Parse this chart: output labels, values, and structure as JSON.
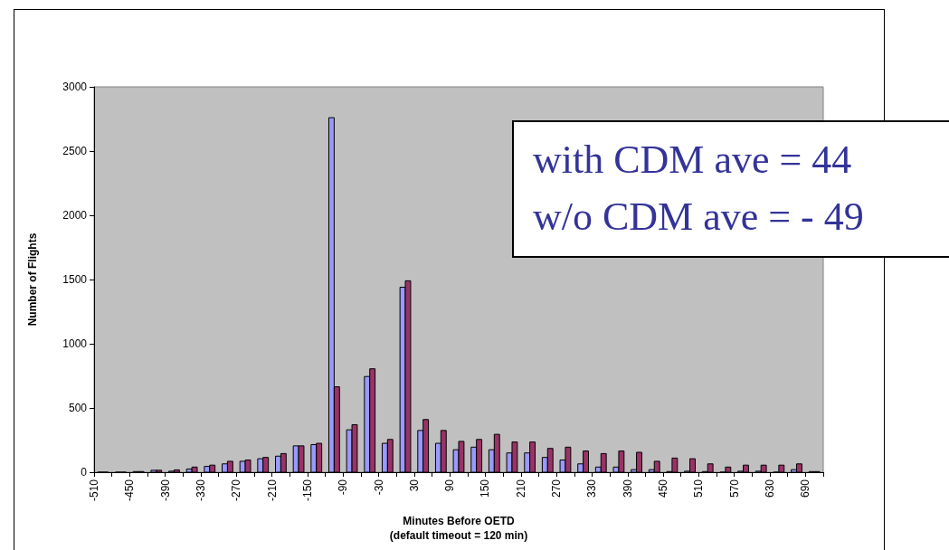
{
  "chart_data": {
    "type": "histogram",
    "xlabel": "Minutes Before OETD\n(default timeout = 120 min)",
    "ylabel": "Number of Flights",
    "bins": [
      -510,
      -480,
      -450,
      -420,
      -390,
      -360,
      -330,
      -300,
      -270,
      -240,
      -210,
      -180,
      -150,
      -120,
      -90,
      -60,
      -30,
      0,
      30,
      60,
      90,
      120,
      150,
      180,
      210,
      240,
      270,
      300,
      330,
      360,
      390,
      420,
      450,
      480,
      510,
      540,
      570,
      600,
      630,
      660,
      690,
      720
    ],
    "series": [
      {
        "color": "#9999ff",
        "values": [
          0,
          0,
          5,
          15,
          8,
          25,
          45,
          65,
          85,
          105,
          125,
          205,
          215,
          2760,
          330,
          745,
          225,
          1440,
          325,
          225,
          175,
          195,
          175,
          150,
          150,
          115,
          95,
          65,
          40,
          40,
          20,
          20,
          5,
          8,
          5,
          0,
          8,
          8,
          0,
          20,
          5
        ]
      },
      {
        "color": "#993366",
        "values": [
          0,
          0,
          5,
          15,
          18,
          40,
          55,
          85,
          95,
          115,
          145,
          205,
          225,
          665,
          370,
          805,
          255,
          1490,
          410,
          325,
          240,
          255,
          295,
          235,
          235,
          185,
          195,
          165,
          145,
          165,
          155,
          85,
          110,
          105,
          65,
          40,
          55,
          55,
          55,
          65,
          5
        ]
      }
    ],
    "ylim": [
      0,
      3000
    ],
    "yticks": [
      0,
      500,
      1000,
      1500,
      2000,
      2500,
      3000
    ],
    "xlim": [
      -510,
      720
    ],
    "xticks": [
      -510,
      {
        "value": -480,
        "label": null
      },
      -450,
      {
        "value": -420,
        "label": null
      },
      -390,
      {
        "value": -360,
        "label": null
      },
      -330,
      {
        "value": -300,
        "label": null
      },
      -270,
      {
        "value": -240,
        "label": null
      },
      -210,
      {
        "value": -180,
        "label": null
      },
      -150,
      {
        "value": -120,
        "label": null
      },
      -90,
      {
        "value": -60,
        "label": null
      },
      -30,
      {
        "value": 0,
        "label": null
      },
      30,
      {
        "value": 60,
        "label": null
      },
      90,
      {
        "value": 120,
        "label": null
      },
      150,
      {
        "value": 180,
        "label": null
      },
      210,
      {
        "value": 240,
        "label": null
      },
      270,
      {
        "value": 300,
        "label": null
      },
      330,
      {
        "value": 360,
        "label": null
      },
      390,
      {
        "value": 420,
        "label": null
      },
      450,
      {
        "value": 480,
        "label": null
      },
      510,
      {
        "value": 540,
        "label": null
      },
      570,
      {
        "value": 600,
        "label": null
      },
      630,
      {
        "value": 660,
        "label": null
      },
      690,
      {
        "value": 720,
        "label": null
      }
    ],
    "annotations": [
      "with CDM ave = 44",
      "w/o CDM ave = - 49"
    ],
    "grid": false
  }
}
